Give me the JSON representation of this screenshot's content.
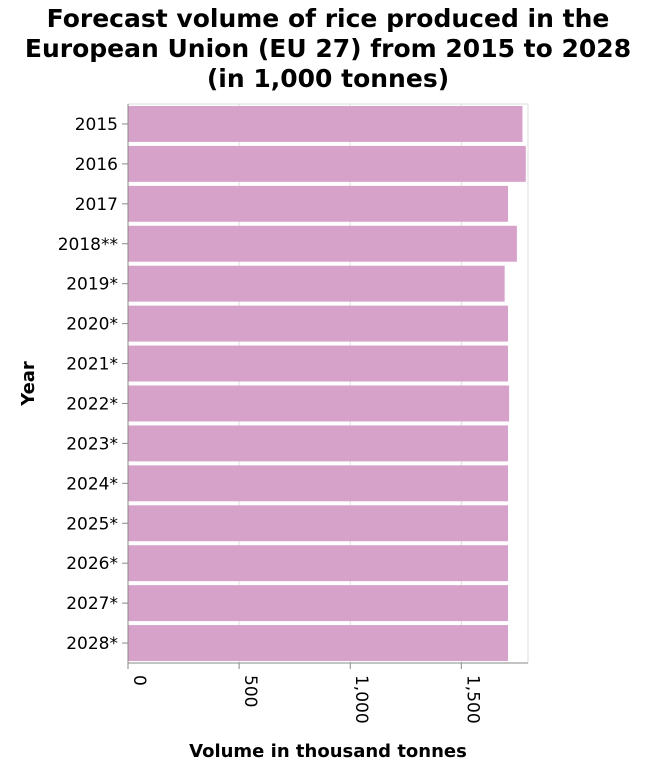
{
  "chart_data": {
    "type": "bar",
    "orientation": "horizontal",
    "title_lines": [
      "Forecast volume of rice produced in the",
      "European Union (EU 27) from 2015 to 2028",
      "(in 1,000 tonnes)"
    ],
    "xlabel": "Volume in thousand tonnes",
    "ylabel": "Year",
    "categories": [
      "2015",
      "2016",
      "2017",
      "2018**",
      "2019*",
      "2020*",
      "2021*",
      "2022*",
      "2023*",
      "2024*",
      "2025*",
      "2026*",
      "2027*",
      "2028*"
    ],
    "values": [
      1775,
      1790,
      1710,
      1750,
      1695,
      1710,
      1710,
      1715,
      1710,
      1710,
      1710,
      1710,
      1710,
      1710
    ],
    "xlim": [
      0,
      1800
    ],
    "xticks": [
      0,
      500,
      1000,
      1500
    ],
    "xtick_labels": [
      "0",
      "500",
      "1,000",
      "1,500"
    ],
    "bar_color": "#d7a2ca",
    "grid": true,
    "legend": "none"
  }
}
